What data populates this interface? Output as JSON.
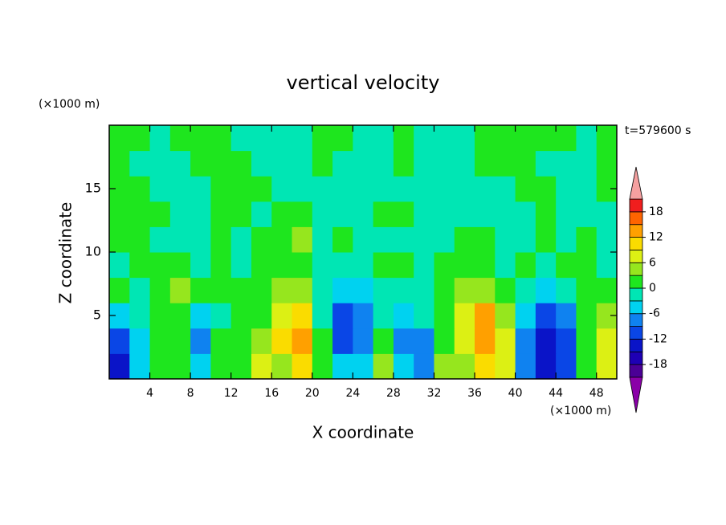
{
  "chart_data": {
    "type": "contour",
    "title": "vertical velocity",
    "x_label": "X coordinate",
    "y_label": "Z coordinate",
    "x_unit": "(×1000 m)",
    "y_unit": "(×1000 m)",
    "annotation": "t=579600 s",
    "xlim": [
      0,
      50
    ],
    "ylim": [
      0,
      20
    ],
    "xticks": [
      4,
      8,
      12,
      16,
      20,
      24,
      28,
      32,
      36,
      40,
      44,
      48
    ],
    "yticks": [
      5,
      10,
      15
    ],
    "x": [
      1,
      3,
      5,
      7,
      9,
      11,
      13,
      15,
      17,
      19,
      21,
      23,
      25,
      27,
      29,
      31,
      33,
      35,
      37,
      39,
      41,
      43,
      45,
      47,
      49
    ],
    "y": [
      1,
      3,
      5,
      7,
      9,
      11,
      13,
      15,
      17,
      19
    ],
    "z": [
      [
        -13,
        -4,
        1,
        1,
        -4,
        1,
        1,
        7,
        4,
        10,
        1,
        -4,
        -4,
        4,
        -4,
        -7,
        4,
        4,
        10,
        7,
        -7,
        -13,
        -10,
        1,
        7
      ],
      [
        -10,
        -4,
        1,
        1,
        -7,
        1,
        1,
        4,
        10,
        13,
        1,
        -10,
        -7,
        1,
        -7,
        -7,
        1,
        7,
        13,
        7,
        -7,
        -15,
        -10,
        1,
        7
      ],
      [
        -4,
        -1,
        1,
        1,
        -4,
        -1,
        1,
        1,
        7,
        10,
        -1,
        -10,
        -7,
        -1,
        -4,
        -1,
        1,
        7,
        13,
        4,
        -4,
        -10,
        -7,
        1,
        4
      ],
      [
        1,
        -1,
        1,
        4,
        1,
        1,
        1,
        1,
        4,
        4,
        -1,
        -4,
        -4,
        -1,
        -1,
        -1,
        1,
        4,
        4,
        1,
        -1,
        -4,
        -1,
        1,
        1
      ],
      [
        -1,
        1,
        1,
        1,
        -1,
        1,
        -1,
        1,
        1,
        1,
        -1,
        -1,
        -1,
        1,
        1,
        -1,
        1,
        1,
        1,
        -1,
        1,
        -1,
        1,
        1,
        -1
      ],
      [
        1,
        1,
        -1,
        -1,
        -1,
        1,
        -1,
        1,
        1,
        4,
        -1,
        1,
        -1,
        -1,
        -1,
        -1,
        -1,
        1,
        1,
        -1,
        -1,
        1,
        -1,
        1,
        -1
      ],
      [
        1,
        1,
        1,
        -1,
        -1,
        1,
        1,
        -1,
        1,
        1,
        -1,
        -1,
        -1,
        1,
        1,
        -1,
        -1,
        -1,
        -1,
        -1,
        -1,
        1,
        -1,
        -1,
        -1
      ],
      [
        1,
        1,
        -1,
        -1,
        -1,
        1,
        1,
        1,
        -1,
        -1,
        -1,
        -1,
        -1,
        -1,
        -1,
        -1,
        -1,
        -1,
        -1,
        -1,
        1,
        1,
        -1,
        -1,
        1
      ],
      [
        1,
        -1,
        -1,
        -1,
        1,
        1,
        1,
        -1,
        -1,
        -1,
        1,
        -1,
        -1,
        -1,
        1,
        -1,
        -1,
        -1,
        1,
        1,
        1,
        -1,
        -1,
        -1,
        1
      ],
      [
        1,
        1,
        -1,
        1,
        1,
        1,
        -1,
        -1,
        -1,
        -1,
        1,
        1,
        -1,
        -1,
        1,
        -1,
        -1,
        -1,
        1,
        1,
        1,
        1,
        1,
        -1,
        1
      ]
    ],
    "levels": [
      -21,
      -18,
      -15,
      -12,
      -9,
      -6,
      -3,
      0,
      3,
      6,
      9,
      12,
      15,
      18,
      21
    ],
    "colors": [
      "#4b0096",
      "#1e00b4",
      "#0a14c8",
      "#0a46e6",
      "#0f82f0",
      "#00d2f0",
      "#00e6b4",
      "#1ee61e",
      "#96e61e",
      "#dcf014",
      "#fadc00",
      "#ffa000",
      "#ff6400",
      "#f01e1e"
    ],
    "extend_colors": [
      "#8a00a8",
      "#f5a0a0"
    ],
    "cbar_ticks": [
      -18,
      -12,
      -6,
      0,
      6,
      12,
      18
    ]
  }
}
